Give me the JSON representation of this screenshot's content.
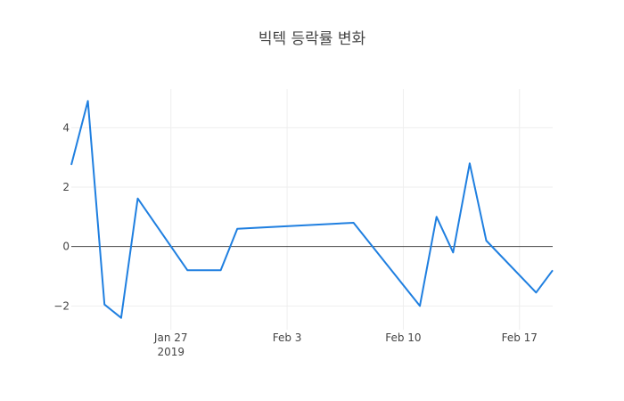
{
  "chart_data": {
    "type": "line",
    "title": "빅텍 등락률 변화",
    "xlabel": "",
    "ylabel": "",
    "x_range": [
      "2019-01-21",
      "2019-02-19"
    ],
    "ylim": [
      -2.8,
      5.3
    ],
    "grid": true,
    "legend": "none",
    "zero_line": true,
    "x_ticks": [
      {
        "date": "2019-01-27",
        "label": "Jan 27",
        "sublabel": "2019"
      },
      {
        "date": "2019-02-03",
        "label": "Feb 3",
        "sublabel": ""
      },
      {
        "date": "2019-02-10",
        "label": "Feb 10",
        "sublabel": ""
      },
      {
        "date": "2019-02-17",
        "label": "Feb 17",
        "sublabel": ""
      }
    ],
    "y_ticks": [
      {
        "value": -2,
        "label": "−2"
      },
      {
        "value": 0,
        "label": "0"
      },
      {
        "value": 2,
        "label": "2"
      },
      {
        "value": 4,
        "label": "4"
      }
    ],
    "series": [
      {
        "color": "#1f7fe0",
        "points": [
          {
            "x": "2019-01-21",
            "y": 2.75
          },
          {
            "x": "2019-01-22",
            "y": 4.9
          },
          {
            "x": "2019-01-23",
            "y": -1.95
          },
          {
            "x": "2019-01-24",
            "y": -2.4
          },
          {
            "x": "2019-01-25",
            "y": 1.62
          },
          {
            "x": "2019-01-28",
            "y": -0.8
          },
          {
            "x": "2019-01-30",
            "y": -0.8
          },
          {
            "x": "2019-01-31",
            "y": 0.6
          },
          {
            "x": "2019-02-07",
            "y": 0.8
          },
          {
            "x": "2019-02-11",
            "y": -2.0
          },
          {
            "x": "2019-02-12",
            "y": 1.0
          },
          {
            "x": "2019-02-13",
            "y": -0.2
          },
          {
            "x": "2019-02-14",
            "y": 2.8
          },
          {
            "x": "2019-02-15",
            "y": 0.2
          },
          {
            "x": "2019-02-18",
            "y": -1.55
          },
          {
            "x": "2019-02-19",
            "y": -0.8
          }
        ]
      }
    ]
  },
  "colors": {
    "line": "#1f7fe0",
    "grid": "#eeeeee",
    "zero_line": "#444444",
    "text": "#444444"
  }
}
